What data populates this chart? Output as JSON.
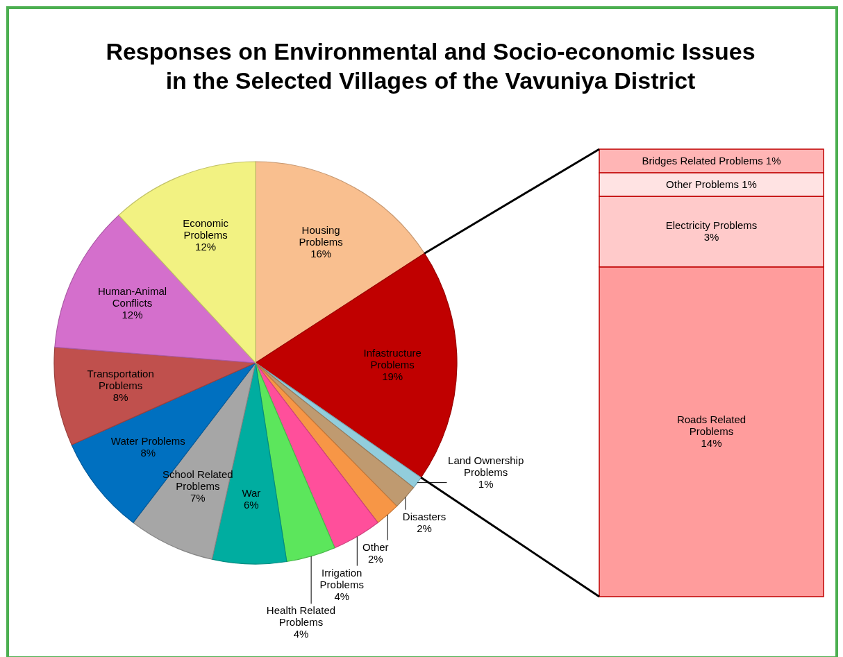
{
  "chart_data": [
    {
      "type": "pie",
      "title": "Responses on Environmental and Socio-economic Issues in the Selected Villages of the Vavuniya District",
      "categories": [
        "Housing Problems",
        "Infastructure Problems",
        "Land Ownership Problems",
        "Disasters",
        "Other",
        "Irrigation Problems",
        "Health Related Problems",
        "War",
        "School Related Problems",
        "Water Problems",
        "Transportation Problems",
        "Human-Animal Conflicts",
        "Economic Problems"
      ],
      "values": [
        16,
        19,
        1,
        2,
        2,
        4,
        4,
        6,
        7,
        8,
        8,
        12,
        12
      ],
      "value_labels": [
        "16%",
        "19%",
        "1%",
        "2%",
        "2%",
        "4%",
        "4%",
        "6%",
        "7%",
        "8%",
        "8%",
        "12%",
        "12%"
      ],
      "colors": [
        "#f9bf8f",
        "#c00000",
        "#92cddc",
        "#bf9a70",
        "#f79646",
        "#ff4f9b",
        "#5ce65c",
        "#00ada0",
        "#a6a6a6",
        "#0070c0",
        "#c0504d",
        "#d46fcc",
        "#f2f282"
      ]
    },
    {
      "type": "bar",
      "stacked": true,
      "categories": [
        null
      ],
      "series": [
        {
          "name": "Roads Related Problems",
          "color": "#ff9c9c",
          "values": [
            14
          ],
          "value_labels": [
            "14%"
          ]
        },
        {
          "name": "Electricity Problems",
          "color": "#ffcaca",
          "values": [
            3
          ],
          "value_labels": [
            "3%"
          ]
        },
        {
          "name": "Other Problems",
          "color": "#ffe3e3",
          "values": [
            1
          ],
          "value_labels": [
            "1%"
          ]
        },
        {
          "name": "Bridges Related Problems",
          "color": "#ffb5b5",
          "values": [
            1
          ],
          "value_labels": [
            "1%"
          ]
        }
      ]
    }
  ]
}
